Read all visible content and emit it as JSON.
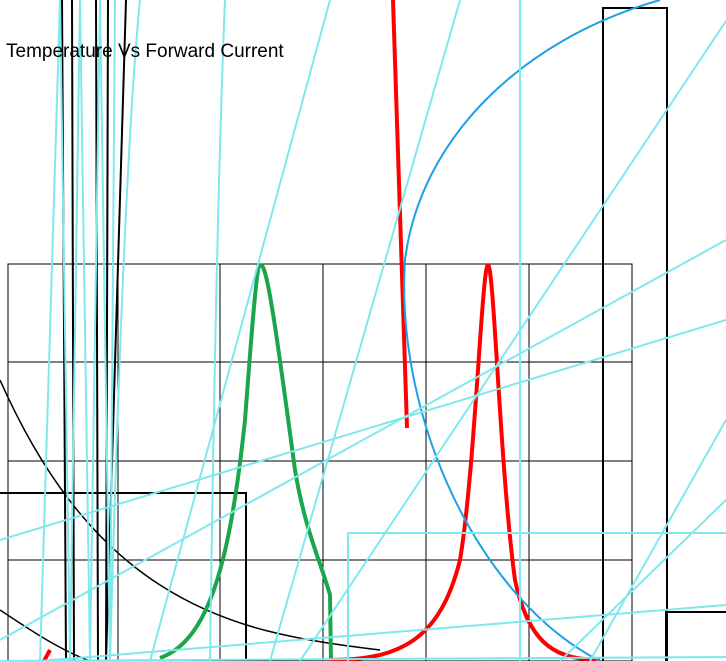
{
  "title": "Temperature Vs Forward Current"
}
